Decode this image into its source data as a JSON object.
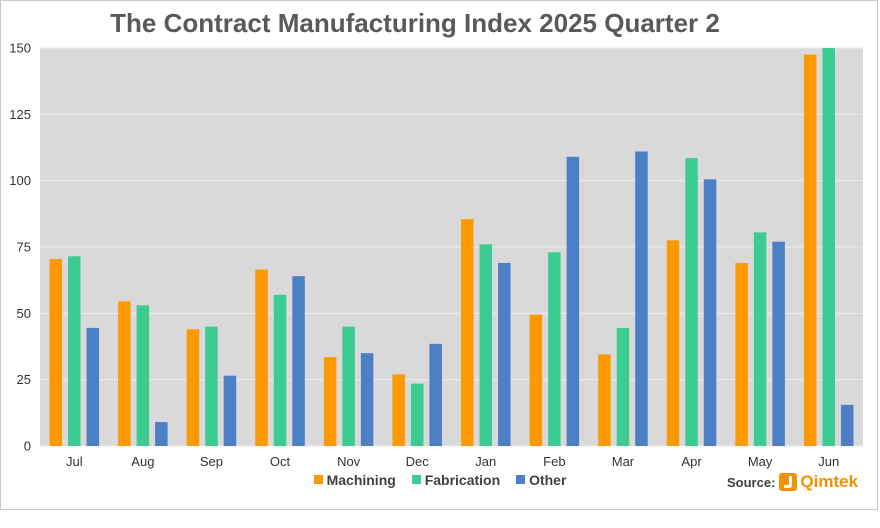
{
  "chart_data": {
    "type": "bar",
    "title": "The Contract Manufacturing Index 2025 Quarter 2",
    "xlabel": "",
    "ylabel": "",
    "categories": [
      "Jul",
      "Aug",
      "Sep",
      "Oct",
      "Nov",
      "Dec",
      "Jan",
      "Feb",
      "Mar",
      "Apr",
      "May",
      "Jun"
    ],
    "ylim": [
      0,
      150
    ],
    "yticks": [
      0,
      25,
      50,
      75,
      100,
      125,
      150
    ],
    "grid": true,
    "legend_position": "bottom",
    "series": [
      {
        "name": "Machining",
        "color": "#FF9900",
        "values": [
          70.5,
          54.5,
          44,
          66.5,
          33.5,
          27,
          85.5,
          49.5,
          34.5,
          77.5,
          69,
          147.5
        ]
      },
      {
        "name": "Fabrication",
        "color": "#3CCB91",
        "values": [
          71.5,
          53,
          45,
          57,
          45,
          23.5,
          76,
          73,
          44.5,
          108.5,
          80.5,
          150
        ]
      },
      {
        "name": "Other",
        "color": "#4D7FC7",
        "values": [
          44.5,
          9,
          26.5,
          64,
          35,
          38.5,
          69,
          109,
          111,
          100.5,
          77,
          15.5
        ]
      }
    ]
  },
  "source": {
    "label": "Source:",
    "brand": "Qimtek",
    "brand_color": "#F39200"
  }
}
